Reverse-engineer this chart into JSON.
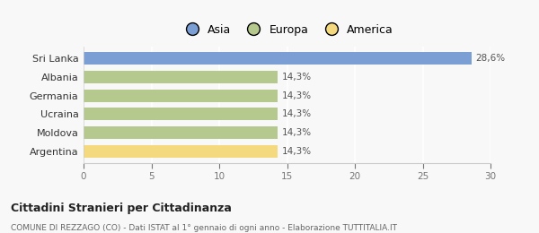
{
  "categories": [
    "Sri Lanka",
    "Albania",
    "Germania",
    "Ucraina",
    "Moldova",
    "Argentina"
  ],
  "values": [
    28.6,
    14.3,
    14.3,
    14.3,
    14.3,
    14.3
  ],
  "bar_colors": [
    "#7b9fd4",
    "#b5c98e",
    "#b5c98e",
    "#b5c98e",
    "#b5c98e",
    "#f5d97e"
  ],
  "value_labels": [
    "28,6%",
    "14,3%",
    "14,3%",
    "14,3%",
    "14,3%",
    "14,3%"
  ],
  "legend_labels": [
    "Asia",
    "Europa",
    "America"
  ],
  "legend_colors": [
    "#7b9fd4",
    "#b5c98e",
    "#f5d97e"
  ],
  "xlim": [
    0,
    30
  ],
  "xticks": [
    0,
    5,
    10,
    15,
    20,
    25,
    30
  ],
  "title": "Cittadini Stranieri per Cittadinanza",
  "subtitle": "COMUNE DI REZZAGO (CO) - Dati ISTAT al 1° gennaio di ogni anno - Elaborazione TUTTITALIA.IT",
  "background_color": "#f8f8f8",
  "bar_height": 0.68
}
